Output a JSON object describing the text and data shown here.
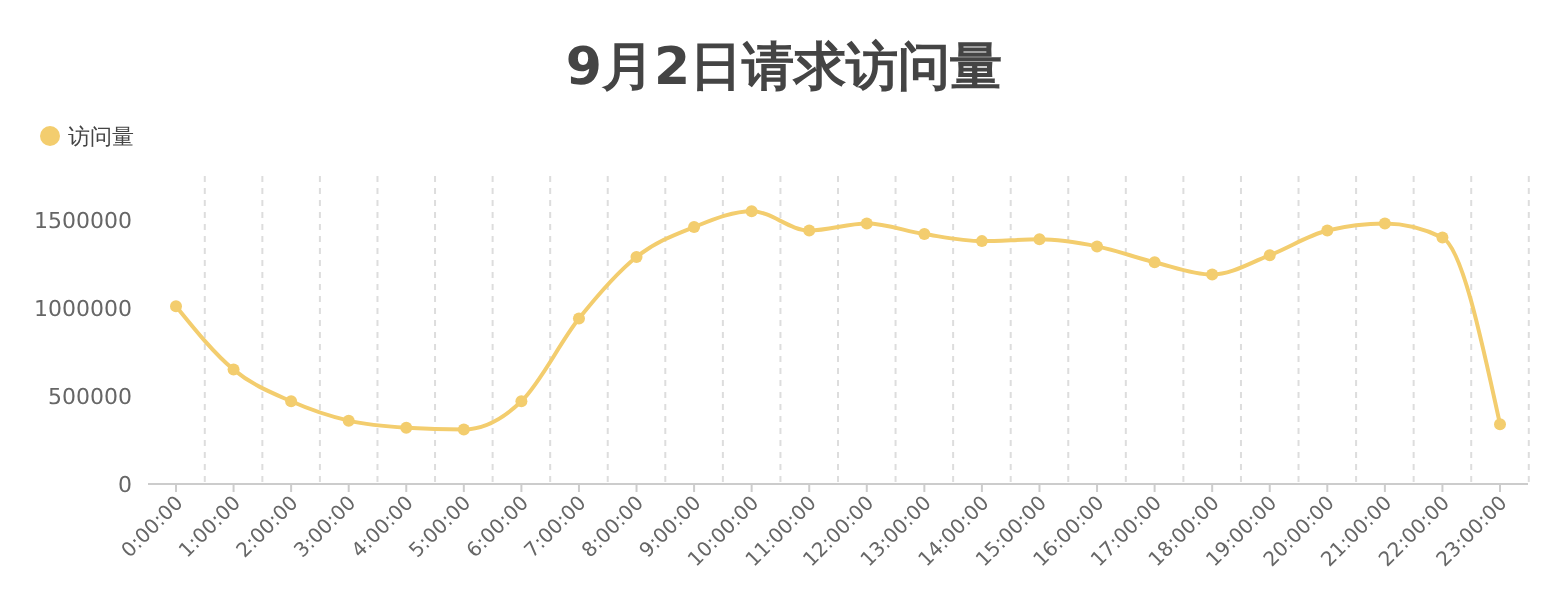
{
  "chart_data": {
    "type": "line",
    "title": "9月2日请求访问量",
    "categories": [
      "0:00:00",
      "1:00:00",
      "2:00:00",
      "3:00:00",
      "4:00:00",
      "5:00:00",
      "6:00:00",
      "7:00:00",
      "8:00:00",
      "9:00:00",
      "10:00:00",
      "11:00:00",
      "12:00:00",
      "13:00:00",
      "14:00:00",
      "15:00:00",
      "16:00:00",
      "17:00:00",
      "18:00:00",
      "19:00:00",
      "20:00:00",
      "21:00:00",
      "22:00:00",
      "23:00:00"
    ],
    "series": [
      {
        "name": "访问量",
        "color": "#f3cd6e",
        "values": [
          1010000,
          650000,
          470000,
          360000,
          320000,
          310000,
          470000,
          940000,
          1290000,
          1460000,
          1550000,
          1440000,
          1480000,
          1420000,
          1380000,
          1390000,
          1350000,
          1260000,
          1190000,
          1300000,
          1440000,
          1480000,
          1400000,
          340000
        ]
      }
    ],
    "ylim": [
      0,
      1750000
    ],
    "yticks": [
      0,
      500000,
      1000000,
      1500000
    ],
    "grid": "x",
    "legend": "top left",
    "marker": "circle",
    "line_style": "solid"
  }
}
